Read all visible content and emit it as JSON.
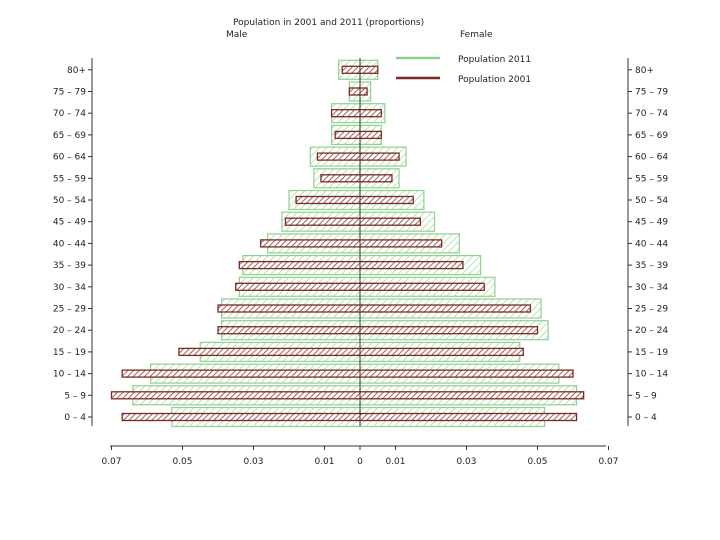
{
  "chart_data": {
    "type": "bar",
    "title": "Population in 2001 and 2011 (proportions)",
    "left_label": "Male",
    "right_label": "Female",
    "categories": [
      "0 – 4",
      "5 – 9",
      "10 – 14",
      "15 – 19",
      "20 – 24",
      "25 – 29",
      "30 – 34",
      "35 – 39",
      "40 – 44",
      "45 – 49",
      "50 – 54",
      "55 – 59",
      "60 – 64",
      "65 – 69",
      "70 – 74",
      "75 – 79",
      "80+"
    ],
    "x_ticks": [
      {
        "value": -0.07,
        "label": "0.07"
      },
      {
        "value": -0.05,
        "label": "0.05"
      },
      {
        "value": -0.03,
        "label": "0.03"
      },
      {
        "value": -0.01,
        "label": "0.01"
      },
      {
        "value": 0,
        "label": "0"
      },
      {
        "value": 0.01,
        "label": "0.01"
      },
      {
        "value": 0.03,
        "label": "0.03"
      },
      {
        "value": 0.05,
        "label": "0.05"
      },
      {
        "value": 0.07,
        "label": "0.07"
      }
    ],
    "xlim": [
      -0.07,
      0.07
    ],
    "series": [
      {
        "name": "Population 2011",
        "color": "#8fd18f",
        "male": [
          0.053,
          0.064,
          0.059,
          0.045,
          0.039,
          0.039,
          0.034,
          0.033,
          0.026,
          0.022,
          0.02,
          0.013,
          0.014,
          0.008,
          0.008,
          0.003,
          0.006
        ],
        "female": [
          0.052,
          0.061,
          0.056,
          0.045,
          0.053,
          0.051,
          0.038,
          0.034,
          0.028,
          0.021,
          0.018,
          0.011,
          0.013,
          0.006,
          0.007,
          0.003,
          0.005
        ]
      },
      {
        "name": "Population 2001",
        "color": "#7a2a22",
        "male": [
          0.067,
          0.07,
          0.067,
          0.051,
          0.04,
          0.04,
          0.035,
          0.034,
          0.028,
          0.021,
          0.018,
          0.011,
          0.012,
          0.007,
          0.008,
          0.003,
          0.005
        ],
        "female": [
          0.061,
          0.063,
          0.06,
          0.046,
          0.05,
          0.048,
          0.035,
          0.029,
          0.023,
          0.017,
          0.015,
          0.009,
          0.011,
          0.006,
          0.006,
          0.002,
          0.005
        ]
      }
    ],
    "legend_position": "top-right",
    "grid": false
  }
}
